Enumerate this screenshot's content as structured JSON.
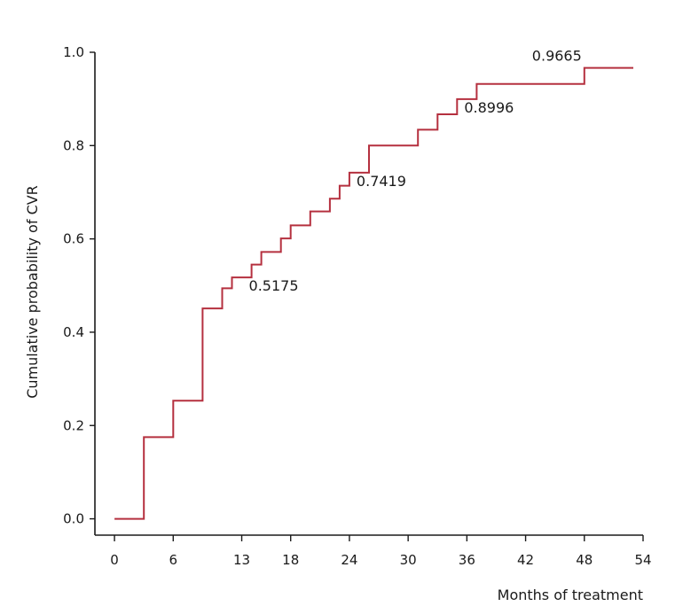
{
  "chart_data": {
    "type": "line",
    "step": "post",
    "xlabel": "Months of treatment",
    "ylabel": "Cumulative probability of CVR",
    "x_ticks": [
      0,
      6,
      13,
      18,
      24,
      30,
      36,
      42,
      48,
      54
    ],
    "y_ticks": [
      "0.0",
      "0.2",
      "0.4",
      "0.6",
      "0.8",
      "1.0"
    ],
    "xlim": [
      -2,
      54
    ],
    "ylim": [
      -0.035,
      1.0
    ],
    "grid": false,
    "line_color": "#b5303f",
    "series": [
      {
        "x": [
          0,
          3,
          6,
          9,
          11,
          12,
          14,
          15,
          17,
          18,
          20,
          22,
          23,
          24,
          26,
          31,
          33,
          35,
          37,
          48,
          53
        ],
        "y": [
          0.0,
          0.175,
          0.253,
          0.451,
          0.494,
          0.5175,
          0.545,
          0.572,
          0.601,
          0.629,
          0.659,
          0.686,
          0.714,
          0.7419,
          0.8,
          0.834,
          0.867,
          0.8996,
          0.932,
          0.9665,
          0.9665
        ]
      }
    ],
    "annotations": [
      {
        "x": 13,
        "y": 0.5175,
        "text": "0.5175",
        "pos": "below-right"
      },
      {
        "x": 24,
        "y": 0.7419,
        "text": "0.7419",
        "pos": "below-right"
      },
      {
        "x": 35,
        "y": 0.8996,
        "text": "0.8996",
        "pos": "below-right"
      },
      {
        "x": 48,
        "y": 0.9665,
        "text": "0.9665",
        "pos": "above-left"
      }
    ]
  }
}
